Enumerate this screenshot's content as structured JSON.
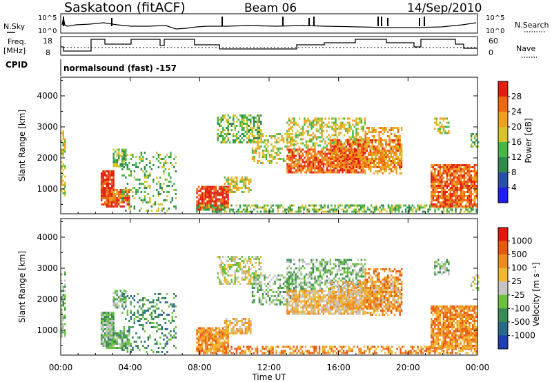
{
  "header": {
    "station": "Saskatoon (fitACF)",
    "beam": "Beam 06",
    "date": "14/Sep/2010"
  },
  "top_panels": {
    "nsky": {
      "label": "N.Sky",
      "ticks": [
        "10^5",
        "10^0"
      ]
    },
    "nsearch": {
      "label": "N.Search",
      "ticks": [
        "10^5",
        "10^0"
      ]
    },
    "freq": {
      "label_line1": "Freq.",
      "label_line2": "[MHz]",
      "ticks": [
        "18",
        "8"
      ]
    },
    "nave": {
      "label": "Nave",
      "ticks": [
        "60",
        "0"
      ]
    },
    "cpid": {
      "label": "CPID",
      "value": "normalsound (fast) -157"
    }
  },
  "chart_data": [
    {
      "type": "heatmap",
      "name": "Power",
      "ylabel": "Slant Range [km]",
      "xlabel": "",
      "y_ticks": [
        "1000",
        "2000",
        "3000",
        "4000"
      ],
      "ylim": [
        200,
        4600
      ],
      "xlim": [
        0,
        24
      ],
      "colorbar": {
        "label": "Power [dB]",
        "ticks": [
          "4",
          "8",
          "12",
          "16",
          "20",
          "24",
          "28"
        ],
        "colors": [
          "#1e1ef0",
          "#2a4fa8",
          "#2f8a4c",
          "#48b74a",
          "#d8c32a",
          "#f0a020",
          "#ee6a10",
          "#e02010"
        ]
      }
    },
    {
      "type": "heatmap",
      "name": "Velocity",
      "ylabel": "Slant Range [km]",
      "xlabel": "Time UT",
      "y_ticks": [
        "1000",
        "2000",
        "3000",
        "4000"
      ],
      "x_ticks": [
        "00:00",
        "04:00",
        "08:00",
        "12:00",
        "16:00",
        "20:00",
        "00:00"
      ],
      "ylim": [
        200,
        4600
      ],
      "xlim": [
        0,
        24
      ],
      "colorbar": {
        "label": "Velocity [m s⁻¹]",
        "ticks": [
          "1000",
          "500",
          "100",
          "25",
          "-25",
          "-100",
          "-500",
          "-1000"
        ],
        "colors": [
          "#1f3fb0",
          "#2b6a86",
          "#3a8a56",
          "#6cc040",
          "#c4c4c4",
          "#f0b830",
          "#ef8a20",
          "#e65a10",
          "#e01810"
        ]
      }
    }
  ]
}
